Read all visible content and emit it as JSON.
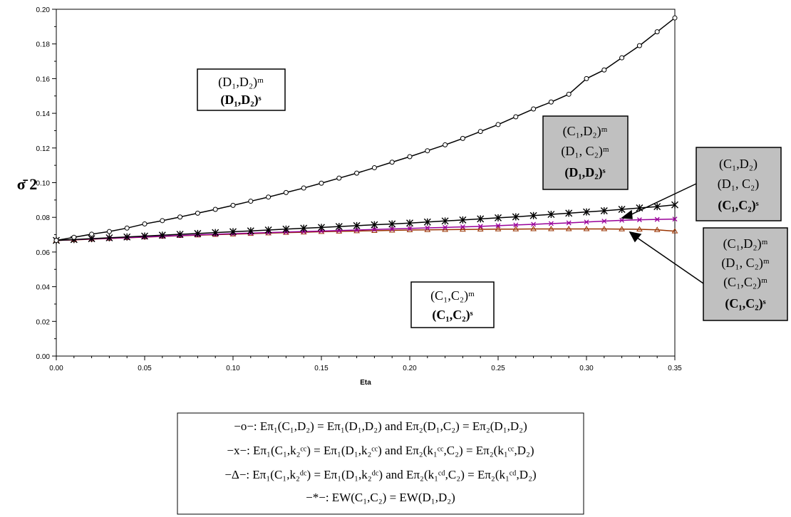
{
  "chart_data": {
    "type": "line",
    "xlabel": "Eta",
    "ylabel": "σ̄ 2",
    "xlim": [
      0.0,
      0.35
    ],
    "ylim": [
      0.0,
      0.2
    ],
    "x_ticks": [
      "0.00",
      "0.05",
      "0.10",
      "0.15",
      "0.20",
      "0.25",
      "0.30",
      "0.35"
    ],
    "y_ticks": [
      "0.00",
      "0.02",
      "0.04",
      "0.06",
      "0.08",
      "0.10",
      "0.12",
      "0.14",
      "0.16",
      "0.18",
      "0.20"
    ],
    "grid": false,
    "x": [
      0.0,
      0.01,
      0.02,
      0.03,
      0.04,
      0.05,
      0.06,
      0.07,
      0.08,
      0.09,
      0.1,
      0.11,
      0.12,
      0.13,
      0.14,
      0.15,
      0.16,
      0.17,
      0.18,
      0.19,
      0.2,
      0.21,
      0.22,
      0.23,
      0.24,
      0.25,
      0.26,
      0.27,
      0.28,
      0.29,
      0.3,
      0.31,
      0.32,
      0.33,
      0.34,
      0.35
    ],
    "series": [
      {
        "name": "-o-",
        "marker": "circle",
        "color": "#000000",
        "values": [
          0.0667,
          0.0685,
          0.0703,
          0.0718,
          0.0738,
          0.0762,
          0.0781,
          0.0802,
          0.0824,
          0.0846,
          0.0869,
          0.0893,
          0.0917,
          0.0943,
          0.0969,
          0.0997,
          0.1026,
          0.1055,
          0.1086,
          0.1118,
          0.115,
          0.1184,
          0.1218,
          0.1255,
          0.1295,
          0.1335,
          0.138,
          0.1425,
          0.1465,
          0.151,
          0.16,
          0.165,
          0.172,
          0.179,
          0.187,
          0.195
        ]
      },
      {
        "name": "-x-",
        "marker": "x",
        "color": "#990099",
        "values": [
          0.0667,
          0.0671,
          0.0675,
          0.0679,
          0.0683,
          0.0687,
          0.0691,
          0.0695,
          0.0699,
          0.0702,
          0.0706,
          0.0709,
          0.0712,
          0.0715,
          0.0718,
          0.0721,
          0.0724,
          0.0727,
          0.073,
          0.0733,
          0.0736,
          0.0739,
          0.0742,
          0.0745,
          0.0748,
          0.0752,
          0.0756,
          0.076,
          0.0764,
          0.0768,
          0.0773,
          0.0778,
          0.0783,
          0.0786,
          0.0788,
          0.079
        ]
      },
      {
        "name": "-Δ-",
        "marker": "triangle",
        "color": "#993300",
        "values": [
          0.0667,
          0.067,
          0.0674,
          0.0678,
          0.0682,
          0.0686,
          0.069,
          0.0694,
          0.0697,
          0.07,
          0.0703,
          0.0706,
          0.0709,
          0.0712,
          0.0714,
          0.0717,
          0.0719,
          0.0721,
          0.0723,
          0.0725,
          0.0727,
          0.0728,
          0.0729,
          0.073,
          0.0731,
          0.0732,
          0.0732,
          0.0733,
          0.0733,
          0.0733,
          0.0733,
          0.0733,
          0.0732,
          0.0731,
          0.0728,
          0.072
        ]
      },
      {
        "name": "-*-",
        "marker": "asterisk",
        "color": "#000000",
        "values": [
          0.0667,
          0.0672,
          0.0677,
          0.0682,
          0.0687,
          0.0692,
          0.0697,
          0.0702,
          0.0707,
          0.0712,
          0.0717,
          0.0722,
          0.0727,
          0.0732,
          0.0737,
          0.0742,
          0.0747,
          0.0752,
          0.0757,
          0.0762,
          0.0767,
          0.0773,
          0.0779,
          0.0785,
          0.0791,
          0.0797,
          0.0803,
          0.081,
          0.0817,
          0.0824,
          0.0831,
          0.0838,
          0.0846,
          0.0854,
          0.0862,
          0.0872
        ]
      }
    ]
  },
  "annotations": {
    "box_d1d2": {
      "line1": "(D₁,D₂)ᵐ",
      "line2": "(D₁,D₂)ˢ"
    },
    "box_c1c2": {
      "line1": "(C₁,C₂)ᵐ",
      "line2": "(C₁,C₂)ˢ"
    },
    "box_grey1": {
      "line1": "(C₁,D₂)ᵐ",
      "line2": "(D₁, C₂)ᵐ",
      "line3": "(D₁,D₂)ˢ"
    },
    "box_grey2": {
      "line1": "(C₁,D₂)",
      "line2": "(D₁, C₂)",
      "line3": "(C₁,C₂)ˢ"
    },
    "box_grey3": {
      "line1": "(C₁,D₂)ᵐ",
      "line2": "(D₁, C₂)ᵐ",
      "line3": "(C₁,C₂)ᵐ",
      "line4": "(C₁,C₂)ˢ"
    }
  },
  "legend": {
    "row1": "−o−: Eπ₁(C₁,D₂) = Eπ₁(D₁,D₂)  and  Eπ₂(D₁,C₂) = Eπ₂(D₁,D₂)",
    "row2": "−x−: Eπ₁(C₁,k₂ᶜᶜ) = Eπ₁(D₁,k₂ᶜᶜ)  and  Eπ₂(k₁ᶜᶜ,C₂) = Eπ₂(k₁ᶜᶜ,D₂)",
    "row3": "−Δ−: Eπ₁(C₁,k₂ᵈᶜ) = Eπ₁(D₁,k₂ᵈᶜ)  and  Eπ₂(k₁ᶜᵈ,C₂) = Eπ₂(k₁ᶜᵈ,D₂)",
    "row4": "−*−: EW(C₁,C₂) = EW(D₁,D₂)"
  }
}
